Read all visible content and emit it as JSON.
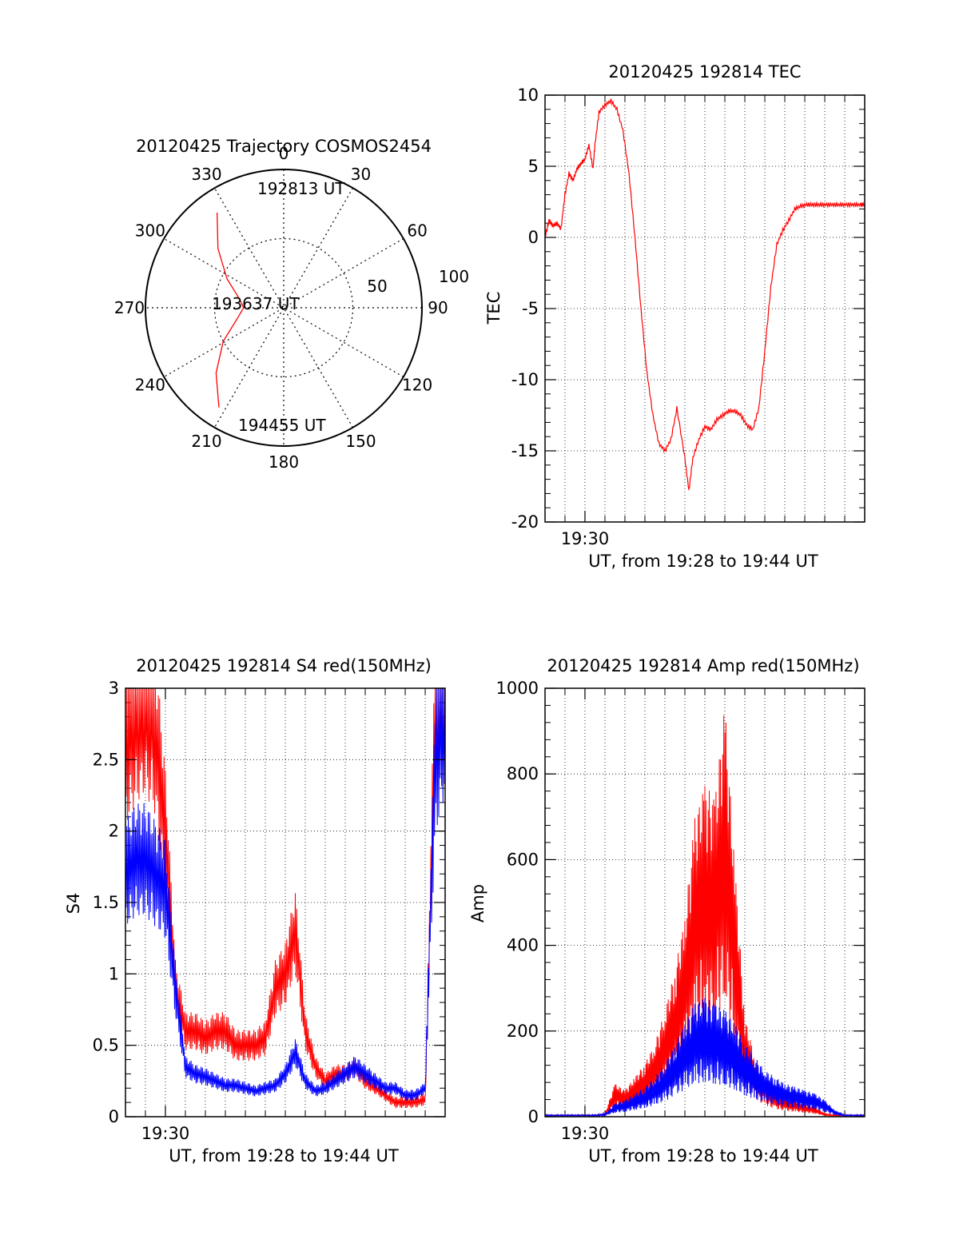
{
  "colors": {
    "red": "#ff0000",
    "blue": "#0000ff",
    "axis": "#000000",
    "grid": "#000000"
  },
  "chart_data": [
    {
      "id": "trajectory",
      "type": "polar",
      "title": "20120425 Trajectory COSMOS2454",
      "radial_range": [
        0,
        100
      ],
      "radial_labels": [
        "50",
        "100"
      ],
      "azimuth_labels": [
        "0",
        "30",
        "60",
        "90",
        "120",
        "150",
        "180",
        "210",
        "240",
        "270",
        "300",
        "330"
      ],
      "annotations": [
        "192813 UT",
        "193637 UT",
        "194455 UT"
      ],
      "track": {
        "color": "red",
        "azimuth_deg": [
          325,
          312,
          297,
          282,
          270,
          256,
          241,
          226,
          213
        ],
        "zenith": [
          84,
          64,
          46,
          33,
          29,
          35,
          50,
          68,
          86
        ]
      }
    },
    {
      "id": "tec",
      "type": "line",
      "title": "20120425 192814 TEC",
      "xlabel": "UT, from 19:28 to 19:44 UT",
      "ylabel": "TEC",
      "x_tick_label": "19:30",
      "xlim": [
        19.4667,
        19.7333
      ],
      "ylim": [
        -20,
        10
      ],
      "yticks": [
        "10",
        "5",
        "0",
        "-5",
        "-10",
        "-15",
        "-20"
      ],
      "series": [
        {
          "color": "red",
          "x": [
            19.4667,
            19.47,
            19.4733,
            19.4767,
            19.48,
            19.4833,
            19.4867,
            19.49,
            19.4933,
            19.4967,
            19.5,
            19.5033,
            19.5067,
            19.5083,
            19.5117,
            19.5167,
            19.5217,
            19.5267,
            19.5317,
            19.5367,
            19.5417,
            19.5467,
            19.5517,
            19.5567,
            19.5617,
            19.5667,
            19.5717,
            19.5767,
            19.5833,
            19.5867,
            19.59,
            19.595,
            19.6,
            19.605,
            19.61,
            19.615,
            19.62,
            19.625,
            19.63,
            19.635,
            19.64,
            19.645,
            19.65,
            19.655,
            19.66,
            19.665,
            19.67,
            19.675,
            19.68,
            19.685,
            19.69,
            19.695,
            19.7,
            19.705,
            19.71,
            19.715,
            19.72,
            19.725,
            19.73,
            19.7333
          ],
          "y": [
            0,
            1.2,
            0.8,
            1.0,
            0.6,
            3.0,
            4.5,
            4.0,
            4.8,
            5.2,
            5.5,
            6.5,
            4.8,
            6.5,
            8.8,
            9.3,
            9.6,
            9.0,
            7.5,
            4.5,
            0,
            -5,
            -9.5,
            -12.5,
            -14.5,
            -15.0,
            -14.2,
            -12.0,
            -15.5,
            -17.8,
            -15.5,
            -14.2,
            -13.3,
            -13.5,
            -12.8,
            -12.5,
            -12.2,
            -12.2,
            -12.5,
            -13.2,
            -13.5,
            -12.0,
            -8.0,
            -3.5,
            -0.5,
            0.5,
            1.2,
            2.0,
            2.2,
            2.3,
            2.3,
            2.3,
            2.3,
            2.3,
            2.3,
            2.3,
            2.3,
            2.3,
            2.3,
            2.3
          ]
        }
      ]
    },
    {
      "id": "s4",
      "type": "line",
      "title": "20120425 192814 S4 red(150MHz)",
      "xlabel": "UT, from 19:28 to 19:44 UT",
      "ylabel": "S4",
      "x_tick_label": "19:30",
      "xlim": [
        19.4667,
        19.7333
      ],
      "ylim": [
        0,
        3
      ],
      "yticks": [
        "3",
        "2.5",
        "2",
        "1.5",
        "1",
        "0.5",
        "0"
      ],
      "series": [
        {
          "color": "red",
          "x": [
            19.4667,
            19.475,
            19.4833,
            19.4917,
            19.5,
            19.5083,
            19.5167,
            19.525,
            19.5333,
            19.5417,
            19.55,
            19.5583,
            19.5667,
            19.575,
            19.5833,
            19.5917,
            19.6,
            19.6083,
            19.6167,
            19.625,
            19.6333,
            19.6417,
            19.65,
            19.6583,
            19.6667,
            19.675,
            19.6833,
            19.6917,
            19.7,
            19.7083,
            19.7167,
            19.725,
            19.7333
          ],
          "y": [
            2.6,
            2.8,
            2.9,
            2.7,
            2.0,
            0.9,
            0.6,
            0.6,
            0.55,
            0.6,
            0.6,
            0.5,
            0.5,
            0.5,
            0.55,
            0.9,
            1.0,
            1.3,
            0.6,
            0.35,
            0.25,
            0.3,
            0.3,
            0.35,
            0.25,
            0.2,
            0.15,
            0.1,
            0.1,
            0.1,
            0.12,
            2.8,
            3.0
          ]
        },
        {
          "color": "blue",
          "x": [
            19.4667,
            19.475,
            19.4833,
            19.4917,
            19.5,
            19.5083,
            19.5167,
            19.525,
            19.5333,
            19.5417,
            19.55,
            19.5583,
            19.5667,
            19.575,
            19.5833,
            19.5917,
            19.6,
            19.6083,
            19.6167,
            19.625,
            19.6333,
            19.6417,
            19.65,
            19.6583,
            19.6667,
            19.675,
            19.6833,
            19.6917,
            19.7,
            19.7083,
            19.7167,
            19.725,
            19.7333
          ],
          "y": [
            1.7,
            1.8,
            1.8,
            1.7,
            1.6,
            0.9,
            0.35,
            0.3,
            0.28,
            0.25,
            0.22,
            0.22,
            0.2,
            0.18,
            0.2,
            0.22,
            0.3,
            0.45,
            0.25,
            0.18,
            0.2,
            0.25,
            0.3,
            0.35,
            0.3,
            0.25,
            0.2,
            0.2,
            0.15,
            0.15,
            0.2,
            2.5,
            2.9
          ]
        }
      ]
    },
    {
      "id": "amp",
      "type": "line",
      "title": "20120425 192814 Amp red(150MHz)",
      "xlabel": "UT, from 19:28 to 19:44 UT",
      "ylabel": "Amp",
      "x_tick_label": "19:30",
      "xlim": [
        19.4667,
        19.7333
      ],
      "ylim": [
        0,
        1000
      ],
      "yticks": [
        "1000",
        "800",
        "600",
        "400",
        "200",
        "0"
      ],
      "series": [
        {
          "color": "red",
          "x": [
            19.4667,
            19.475,
            19.4833,
            19.4917,
            19.5,
            19.5083,
            19.5167,
            19.525,
            19.5333,
            19.5417,
            19.55,
            19.5583,
            19.5667,
            19.575,
            19.5833,
            19.5917,
            19.6,
            19.6083,
            19.6167,
            19.625,
            19.6333,
            19.6417,
            19.65,
            19.6583,
            19.6667,
            19.675,
            19.6833,
            19.6917,
            19.7,
            19.7083,
            19.7167,
            19.725,
            19.7333
          ],
          "y": [
            3,
            3,
            3,
            3,
            3,
            3,
            5,
            50,
            40,
            60,
            80,
            110,
            160,
            220,
            300,
            450,
            500,
            480,
            620,
            380,
            150,
            90,
            60,
            40,
            30,
            25,
            20,
            15,
            5,
            3,
            3,
            3,
            3
          ]
        },
        {
          "color": "blue",
          "x": [
            19.4667,
            19.475,
            19.4833,
            19.4917,
            19.5,
            19.5083,
            19.5167,
            19.525,
            19.5333,
            19.5417,
            19.55,
            19.5583,
            19.5667,
            19.575,
            19.5833,
            19.5917,
            19.6,
            19.6083,
            19.6167,
            19.625,
            19.6333,
            19.6417,
            19.65,
            19.6583,
            19.6667,
            19.675,
            19.6833,
            19.6917,
            19.7,
            19.7083,
            19.7167,
            19.725,
            19.7333
          ],
          "y": [
            3,
            3,
            3,
            3,
            3,
            3,
            5,
            20,
            25,
            35,
            45,
            60,
            80,
            110,
            140,
            170,
            180,
            170,
            160,
            140,
            110,
            90,
            70,
            60,
            50,
            45,
            40,
            35,
            25,
            10,
            3,
            3,
            3
          ]
        }
      ]
    }
  ]
}
